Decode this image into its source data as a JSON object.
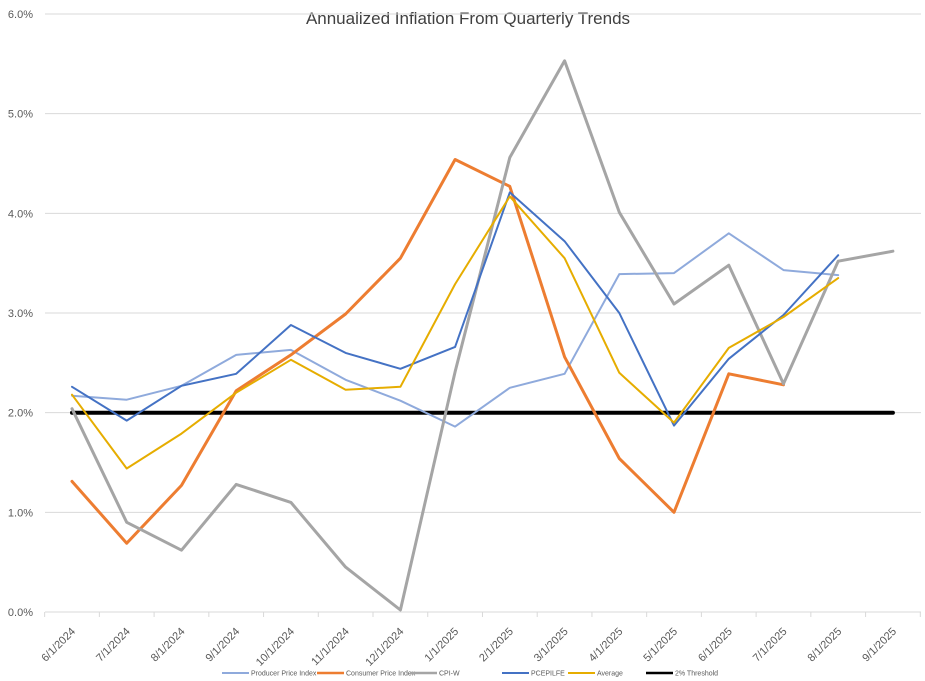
{
  "chart_data": {
    "type": "line",
    "title": "Annualized Inflation From Quarterly Trends",
    "xlabel": "",
    "ylabel": "",
    "categories": [
      "6/1/2024",
      "7/1/2024",
      "8/1/2024",
      "9/1/2024",
      "10/1/2024",
      "11/1/2024",
      "12/1/2024",
      "1/1/2025",
      "2/1/2025",
      "3/1/2025",
      "4/1/2025",
      "5/1/2025",
      "6/1/2025",
      "7/1/2025",
      "8/1/2025",
      "9/1/2025"
    ],
    "ylim": [
      0,
      6
    ],
    "yticks": [
      "0.0%",
      "1.0%",
      "2.0%",
      "3.0%",
      "4.0%",
      "5.0%",
      "6.0%"
    ],
    "y_unit": "%",
    "grid": true,
    "legend_position": "bottom",
    "series": [
      {
        "name": "Producer Price Index",
        "color": "#8faadc",
        "width": 2,
        "values": [
          2.17,
          2.13,
          2.27,
          2.58,
          2.63,
          2.33,
          2.12,
          1.86,
          2.25,
          2.39,
          3.39,
          3.4,
          3.8,
          3.43,
          3.38,
          null
        ]
      },
      {
        "name": "Consumer Price Index",
        "color": "#ed7d31",
        "width": 3,
        "values": [
          1.31,
          0.69,
          1.27,
          2.22,
          2.58,
          2.99,
          3.55,
          4.54,
          4.27,
          2.56,
          1.54,
          1.0,
          2.39,
          2.28,
          null,
          null
        ]
      },
      {
        "name": "CPI-W",
        "color": "#a5a5a5",
        "width": 3,
        "values": [
          2.04,
          0.9,
          0.62,
          1.28,
          1.1,
          0.45,
          0.02,
          2.41,
          4.56,
          5.53,
          4.01,
          3.09,
          3.48,
          2.29,
          3.52,
          3.62
        ]
      },
      {
        "name": "PCEPILFE",
        "color": "#4472c4",
        "width": 2,
        "values": [
          2.26,
          1.92,
          2.27,
          2.39,
          2.88,
          2.6,
          2.44,
          2.66,
          4.21,
          3.72,
          3.0,
          1.87,
          2.54,
          2.98,
          3.58,
          null
        ]
      },
      {
        "name": "Average",
        "color": "#e6ad00",
        "width": 2,
        "values": [
          2.18,
          1.44,
          1.79,
          2.2,
          2.53,
          2.23,
          2.26,
          3.29,
          4.17,
          3.55,
          2.4,
          1.9,
          2.65,
          2.96,
          3.35,
          null
        ]
      },
      {
        "name": "2% Threshold",
        "color": "#000000",
        "width": 4,
        "values": [
          2,
          2,
          2,
          2,
          2,
          2,
          2,
          2,
          2,
          2,
          2,
          2,
          2,
          2,
          2,
          2
        ]
      }
    ]
  }
}
